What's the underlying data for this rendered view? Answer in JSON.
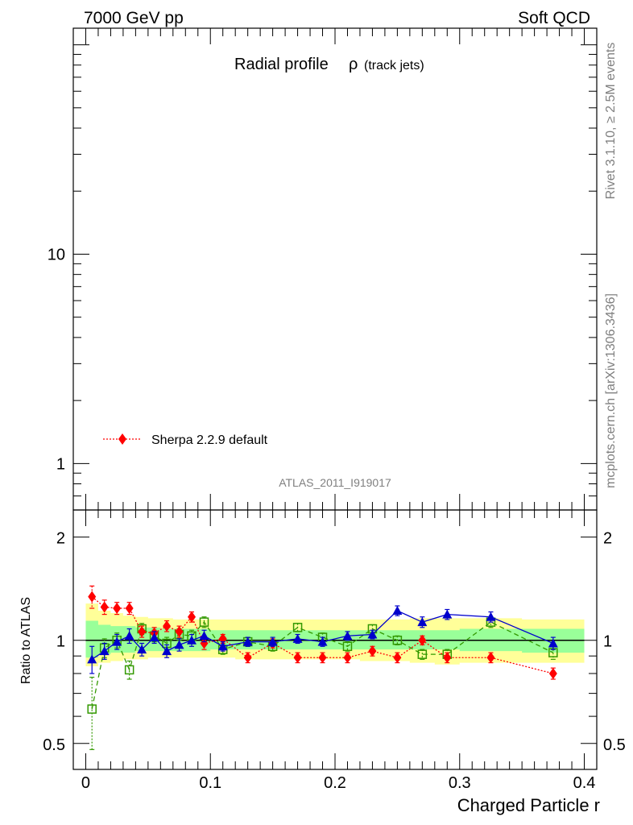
{
  "header": {
    "left": "7000 GeV pp",
    "right": "Soft QCD"
  },
  "side_labels": {
    "top": "Rivet 3.1.10, ≥ 2.5M events",
    "bottom": "mcplots.cern.ch [arXiv:1306.3436]"
  },
  "chart_data": [
    {
      "type": "line",
      "panel": "main",
      "title": "Radial profile",
      "title_symbol": "ρ",
      "title_suffix": "(track jets)",
      "analysis_label": "ATLAS_2011_I919017",
      "yscale": "log",
      "ylim": [
        0.6,
        120
      ],
      "xlim": [
        -0.01,
        0.41
      ],
      "ytick_labels": [
        "1",
        "10"
      ],
      "legend": {
        "placement": "bottom-left",
        "entries": [
          "Sherpa 2.2.9 default"
        ]
      },
      "series": [
        {
          "name": "Sherpa 2.2.9 default",
          "color": "#ff0000",
          "marker": "diamond",
          "line": "dotted"
        }
      ]
    },
    {
      "type": "line",
      "panel": "ratio",
      "ylabel": "Ratio to ATLAS",
      "xlabel": "Charged Particle r",
      "yscale": "log",
      "ylim": [
        0.42,
        2.4
      ],
      "xlim": [
        -0.01,
        0.41
      ],
      "xtick_labels": [
        "0",
        "0.1",
        "0.2",
        "0.3",
        "0.4"
      ],
      "ytick_labels": [
        "0.5",
        "1",
        "2"
      ],
      "reference_line": 1.0,
      "bands": {
        "x": [
          0.0,
          0.01,
          0.02,
          0.03,
          0.04,
          0.05,
          0.06,
          0.07,
          0.08,
          0.09,
          0.1,
          0.12,
          0.14,
          0.16,
          0.18,
          0.2,
          0.22,
          0.24,
          0.26,
          0.28,
          0.3,
          0.35,
          0.4
        ],
        "inner": [
          [
            0.89,
            1.14
          ],
          [
            0.91,
            1.11
          ],
          [
            0.92,
            1.1
          ],
          [
            0.92,
            1.1
          ],
          [
            0.93,
            1.09
          ],
          [
            0.93,
            1.09
          ],
          [
            0.93,
            1.08
          ],
          [
            0.93,
            1.08
          ],
          [
            0.93,
            1.08
          ],
          [
            0.93,
            1.08
          ],
          [
            0.94,
            1.07
          ],
          [
            0.94,
            1.07
          ],
          [
            0.94,
            1.07
          ],
          [
            0.94,
            1.07
          ],
          [
            0.94,
            1.07
          ],
          [
            0.94,
            1.07
          ],
          [
            0.94,
            1.07
          ],
          [
            0.94,
            1.07
          ],
          [
            0.94,
            1.07
          ],
          [
            0.94,
            1.07
          ],
          [
            0.93,
            1.08
          ],
          [
            0.92,
            1.08
          ]
        ],
        "outer": [
          [
            0.84,
            1.28
          ],
          [
            0.86,
            1.22
          ],
          [
            0.87,
            1.2
          ],
          [
            0.88,
            1.18
          ],
          [
            0.88,
            1.17
          ],
          [
            0.89,
            1.16
          ],
          [
            0.89,
            1.16
          ],
          [
            0.89,
            1.15
          ],
          [
            0.89,
            1.15
          ],
          [
            0.89,
            1.15
          ],
          [
            0.89,
            1.15
          ],
          [
            0.88,
            1.15
          ],
          [
            0.88,
            1.15
          ],
          [
            0.88,
            1.15
          ],
          [
            0.88,
            1.15
          ],
          [
            0.88,
            1.15
          ],
          [
            0.87,
            1.15
          ],
          [
            0.87,
            1.15
          ],
          [
            0.86,
            1.16
          ],
          [
            0.85,
            1.16
          ],
          [
            0.86,
            1.16
          ],
          [
            0.86,
            1.15
          ]
        ]
      },
      "series": [
        {
          "name": "Sherpa 2.2.9 default",
          "color": "#ff0000",
          "marker": "diamond",
          "line": "dotted",
          "points": [
            {
              "x": 0.005,
              "y": 1.34,
              "err": 0.1
            },
            {
              "x": 0.015,
              "y": 1.25,
              "err": 0.06
            },
            {
              "x": 0.025,
              "y": 1.24,
              "err": 0.05
            },
            {
              "x": 0.035,
              "y": 1.24,
              "err": 0.05
            },
            {
              "x": 0.045,
              "y": 1.06,
              "err": 0.04
            },
            {
              "x": 0.055,
              "y": 1.05,
              "err": 0.04
            },
            {
              "x": 0.065,
              "y": 1.1,
              "err": 0.04
            },
            {
              "x": 0.075,
              "y": 1.06,
              "err": 0.04
            },
            {
              "x": 0.085,
              "y": 1.17,
              "err": 0.04
            },
            {
              "x": 0.095,
              "y": 0.98,
              "err": 0.04
            },
            {
              "x": 0.11,
              "y": 1.01,
              "err": 0.03
            },
            {
              "x": 0.13,
              "y": 0.89,
              "err": 0.03
            },
            {
              "x": 0.15,
              "y": 0.98,
              "err": 0.03
            },
            {
              "x": 0.17,
              "y": 0.89,
              "err": 0.03
            },
            {
              "x": 0.19,
              "y": 0.89,
              "err": 0.03
            },
            {
              "x": 0.21,
              "y": 0.89,
              "err": 0.03
            },
            {
              "x": 0.23,
              "y": 0.93,
              "err": 0.03
            },
            {
              "x": 0.25,
              "y": 0.89,
              "err": 0.03
            },
            {
              "x": 0.27,
              "y": 1.0,
              "err": 0.03
            },
            {
              "x": 0.29,
              "y": 0.89,
              "err": 0.03
            },
            {
              "x": 0.325,
              "y": 0.89,
              "err": 0.03
            },
            {
              "x": 0.375,
              "y": 0.8,
              "err": 0.03
            }
          ]
        },
        {
          "color": "#ff0000",
          "marker": "diamond",
          "line": "dotted",
          "points": [
            {
              "x": 0.005,
              "y": 1.34,
              "err": 0.1
            }
          ]
        },
        {
          "color": "#0000cc",
          "marker": "triangle",
          "line": "solid",
          "points": [
            {
              "x": 0.005,
              "y": 0.88,
              "err": 0.08
            },
            {
              "x": 0.015,
              "y": 0.93,
              "err": 0.05
            },
            {
              "x": 0.025,
              "y": 0.99,
              "err": 0.05
            },
            {
              "x": 0.035,
              "y": 1.03,
              "err": 0.05
            },
            {
              "x": 0.045,
              "y": 0.94,
              "err": 0.04
            },
            {
              "x": 0.055,
              "y": 1.02,
              "err": 0.04
            },
            {
              "x": 0.065,
              "y": 0.93,
              "err": 0.04
            },
            {
              "x": 0.075,
              "y": 0.97,
              "err": 0.04
            },
            {
              "x": 0.085,
              "y": 1.0,
              "err": 0.04
            },
            {
              "x": 0.095,
              "y": 1.03,
              "err": 0.04
            },
            {
              "x": 0.11,
              "y": 0.96,
              "err": 0.03
            },
            {
              "x": 0.13,
              "y": 0.99,
              "err": 0.03
            },
            {
              "x": 0.15,
              "y": 0.99,
              "err": 0.03
            },
            {
              "x": 0.17,
              "y": 1.01,
              "err": 0.03
            },
            {
              "x": 0.19,
              "y": 0.99,
              "err": 0.03
            },
            {
              "x": 0.21,
              "y": 1.03,
              "err": 0.03
            },
            {
              "x": 0.23,
              "y": 1.04,
              "err": 0.03
            },
            {
              "x": 0.25,
              "y": 1.22,
              "err": 0.04
            },
            {
              "x": 0.27,
              "y": 1.13,
              "err": 0.04
            },
            {
              "x": 0.29,
              "y": 1.19,
              "err": 0.04
            },
            {
              "x": 0.325,
              "y": 1.17,
              "err": 0.04
            },
            {
              "x": 0.375,
              "y": 0.98,
              "err": 0.04
            }
          ]
        },
        {
          "color": "#339900",
          "marker": "open-square",
          "line": "dashed",
          "points": [
            {
              "x": 0.005,
              "y": 0.63,
              "err": 0.15
            },
            {
              "x": 0.015,
              "y": 0.95,
              "err": 0.06
            },
            {
              "x": 0.025,
              "y": 1.0,
              "err": 0.05
            },
            {
              "x": 0.035,
              "y": 0.82,
              "err": 0.05
            },
            {
              "x": 0.045,
              "y": 1.08,
              "err": 0.04
            },
            {
              "x": 0.055,
              "y": 1.03,
              "err": 0.04
            },
            {
              "x": 0.065,
              "y": 0.98,
              "err": 0.04
            },
            {
              "x": 0.075,
              "y": 1.04,
              "err": 0.04
            },
            {
              "x": 0.085,
              "y": 1.03,
              "err": 0.04
            },
            {
              "x": 0.095,
              "y": 1.13,
              "err": 0.04
            },
            {
              "x": 0.11,
              "y": 0.94,
              "err": 0.03
            },
            {
              "x": 0.13,
              "y": 0.99,
              "err": 0.03
            },
            {
              "x": 0.15,
              "y": 0.96,
              "err": 0.03
            },
            {
              "x": 0.17,
              "y": 1.09,
              "err": 0.03
            },
            {
              "x": 0.19,
              "y": 1.02,
              "err": 0.03
            },
            {
              "x": 0.21,
              "y": 0.96,
              "err": 0.03
            },
            {
              "x": 0.23,
              "y": 1.08,
              "err": 0.03
            },
            {
              "x": 0.25,
              "y": 1.0,
              "err": 0.03
            },
            {
              "x": 0.27,
              "y": 0.91,
              "err": 0.03
            },
            {
              "x": 0.29,
              "y": 0.91,
              "err": 0.03
            },
            {
              "x": 0.325,
              "y": 1.13,
              "err": 0.04
            },
            {
              "x": 0.375,
              "y": 0.92,
              "err": 0.04
            }
          ]
        }
      ]
    }
  ]
}
